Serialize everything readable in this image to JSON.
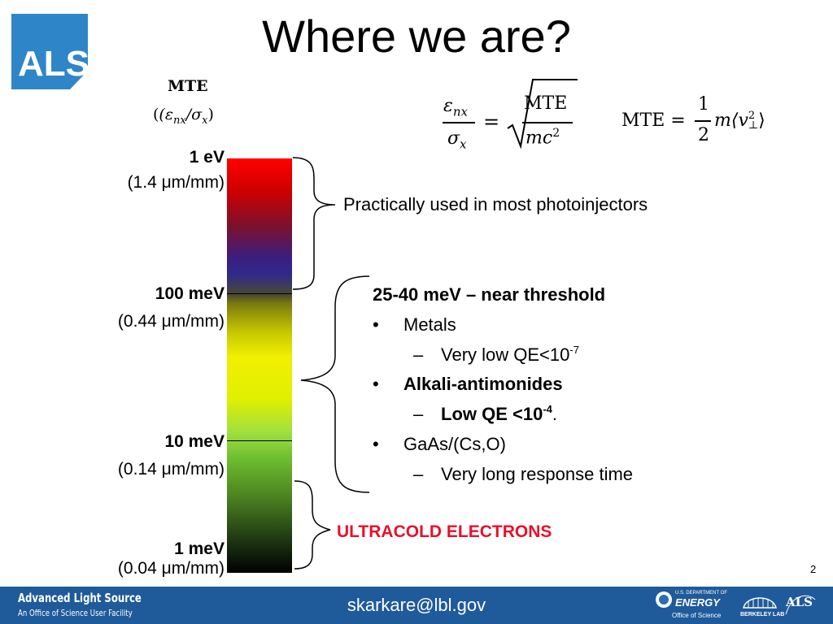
{
  "logo": {
    "text": "ALS"
  },
  "title": "Where we are?",
  "scale_header": {
    "line1": "MTE",
    "line2": "(ε",
    "line2_sub1": "nx",
    "line2_mid": "/σ",
    "line2_sub2": "x",
    "line2_end": ")"
  },
  "formulas": {
    "left_num": "ε",
    "left_num_sub": "nx",
    "left_den": "σ",
    "left_den_sub": "x",
    "equals": "=",
    "sqrt_num": "MTE",
    "sqrt_den": "mc",
    "sqrt_den_sup": "2",
    "right_lhs": "MTE =",
    "half_num": "1",
    "half_den": "2",
    "right_m": "m",
    "right_v": "⟨v",
    "right_v_sup": "2",
    "right_v_sub": "⊥",
    "right_close": "⟩"
  },
  "scale": [
    {
      "energy": "1 eV",
      "emittance": "(1.4 μm/mm)"
    },
    {
      "energy": "100 meV",
      "emittance": "(0.44 μm/mm)"
    },
    {
      "energy": "10 meV",
      "emittance": "(0.14 μm/mm)"
    },
    {
      "energy": "1 meV",
      "emittance": "(0.04 μm/mm)"
    }
  ],
  "annotations": {
    "photoinjectors": "Practically used in most photoinjectors",
    "threshold_heading": "25-40 meV – near threshold",
    "items": [
      {
        "bullet": "•",
        "text": "Metals"
      },
      {
        "bullet": "–",
        "text": "Very low QE<10",
        "sup": "-7",
        "after": ""
      },
      {
        "bullet": "•",
        "text": "Alkali-antimonides"
      },
      {
        "bullet": "–",
        "text": "Low QE <10",
        "sup": "-4",
        "after": "."
      },
      {
        "bullet": "•",
        "text": "GaAs/(Cs,O)"
      },
      {
        "bullet": "–",
        "text": "Very long response time"
      }
    ],
    "ultracold": "ULTRACOLD ELECTRONS"
  },
  "colors": {
    "ultracold": "#e8102a",
    "footer": "#1f5a9b",
    "logo": "#2e86c8"
  },
  "page_number": "2",
  "footer": {
    "org_line1": "Advanced Light Source",
    "org_line2": "An Office of Science User Facility",
    "email": "skarkare@lbl.gov",
    "doe_line1": "U.S. DEPARTMENT OF",
    "doe_line2": "ENERGY",
    "doe_line3": "Office of Science",
    "berkeley": "BERKELEY LAB",
    "als_small": "ALS"
  }
}
